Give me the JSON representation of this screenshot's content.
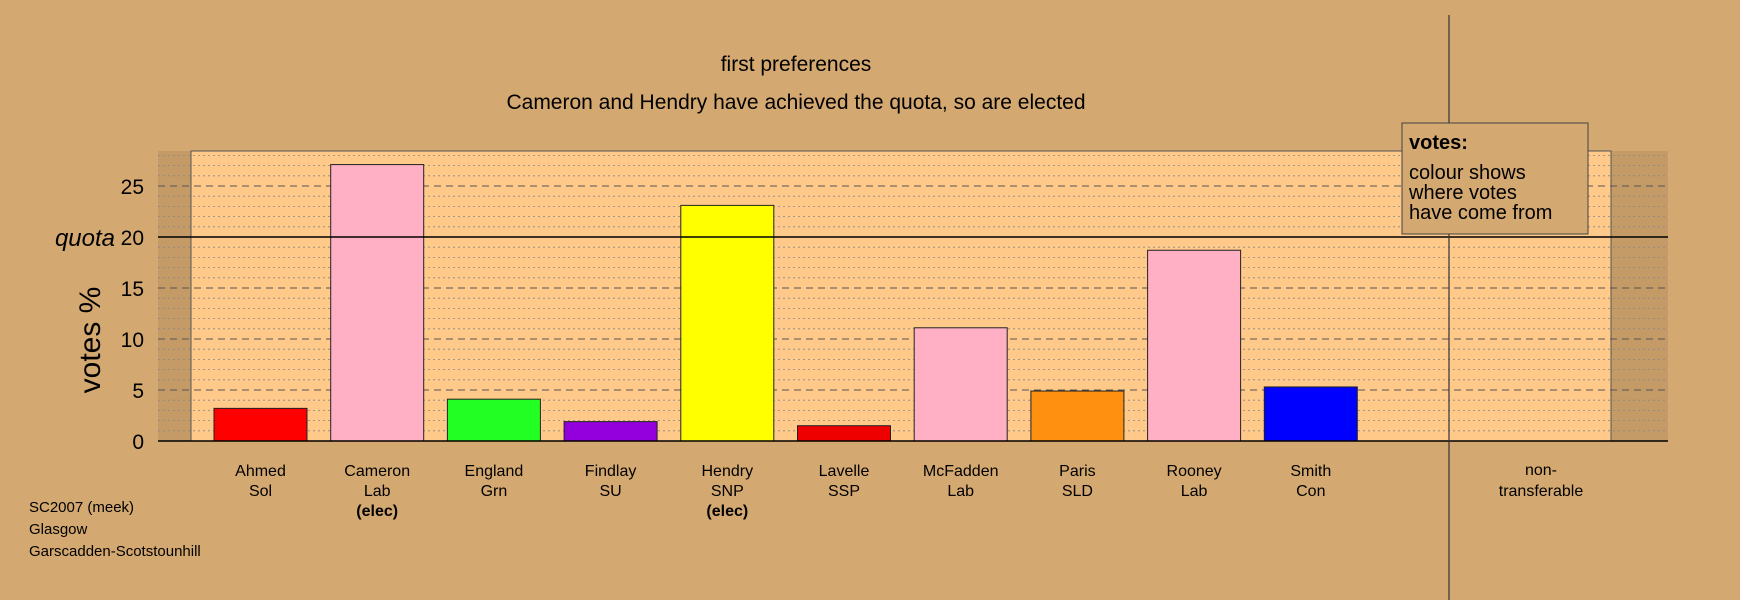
{
  "chart_data": {
    "type": "bar",
    "title": "first preferences",
    "subtitle": "Cameron and Hendry have achieved the quota, so are elected",
    "ylabel": "votes %",
    "ylim": [
      0,
      28.5
    ],
    "yticks": [
      0,
      5,
      10,
      15,
      20,
      25
    ],
    "quota": 20,
    "quota_label": "quota",
    "grid": true,
    "categories": [
      {
        "name": "Ahmed",
        "party": "Sol",
        "value": 3.2,
        "color": "#ff0000",
        "status": ""
      },
      {
        "name": "Cameron",
        "party": "Lab",
        "value": 27.1,
        "color": "#ffb0c4",
        "status": "(elec)"
      },
      {
        "name": "England",
        "party": "Grn",
        "value": 4.1,
        "color": "#22ff22",
        "status": ""
      },
      {
        "name": "Findlay",
        "party": "SU",
        "value": 1.9,
        "color": "#9400dd",
        "status": ""
      },
      {
        "name": "Hendry",
        "party": "SNP",
        "value": 23.1,
        "color": "#ffff00",
        "status": "(elec)"
      },
      {
        "name": "Lavelle",
        "party": "SSP",
        "value": 1.5,
        "color": "#ee0000",
        "status": ""
      },
      {
        "name": "McFadden",
        "party": "Lab",
        "value": 11.1,
        "color": "#ffb0c4",
        "status": ""
      },
      {
        "name": "Paris",
        "party": "SLD",
        "value": 4.9,
        "color": "#ff9010",
        "status": ""
      },
      {
        "name": "Rooney",
        "party": "Lab",
        "value": 18.7,
        "color": "#ffb0c4",
        "status": ""
      },
      {
        "name": "Smith",
        "party": "Con",
        "value": 5.3,
        "color": "#0000ff",
        "status": ""
      }
    ],
    "nontransferable": {
      "label_line1": "non-",
      "label_line2": "transferable",
      "value": 0
    },
    "legend": {
      "placement": "top-right",
      "title": "votes:",
      "lines": [
        "colour shows",
        "where votes",
        "have come from"
      ]
    }
  },
  "footer": {
    "line1": "SC2007 (meek)",
    "line2": "Glasgow",
    "line3": "Garscadden-Scotstounhill"
  },
  "colors": {
    "background": "#d4a871",
    "plot_background": "#ffc98a",
    "edge_shade": "#c49a66"
  }
}
